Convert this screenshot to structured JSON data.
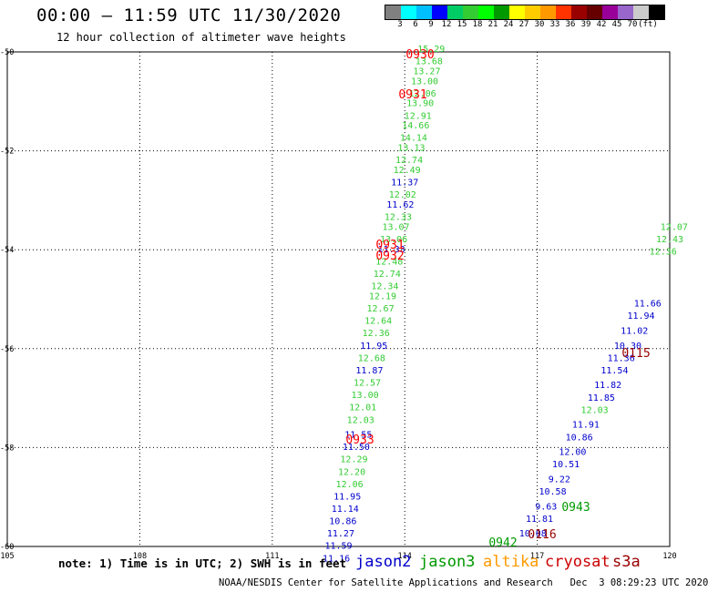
{
  "title": "00:00 – 11:59 UTC 11/30/2020",
  "subtitle": "12 hour collection of altimeter wave heights",
  "colorbar": {
    "colors": [
      "#808080",
      "#00ffff",
      "#00bfff",
      "#0000ff",
      "#00cc66",
      "#33cc33",
      "#00ff00",
      "#009900",
      "#ffff00",
      "#ffcc00",
      "#ff9900",
      "#ff3300",
      "#990000",
      "#660000",
      "#990099",
      "#9966cc",
      "#cccccc",
      "#000000"
    ],
    "labels": [
      "3",
      "6",
      "9",
      "12",
      "15",
      "18",
      "21",
      "24",
      "27",
      "30",
      "33",
      "36",
      "39",
      "42",
      "45",
      "70",
      "(ft)"
    ]
  },
  "axes": {
    "lat_labels": [
      "-50",
      "-52",
      "-54",
      "-56",
      "-58",
      "-60"
    ],
    "lon_labels": [
      "105",
      "108",
      "111",
      "114",
      "117",
      "120"
    ]
  },
  "map_data": {
    "units": "ft",
    "tracks": [
      {
        "satellite": "mixed",
        "points": [
          {
            "lon": 114.6,
            "lat": -50.0,
            "swh": "15.29",
            "color": "#33cc33"
          },
          {
            "lon": 114.55,
            "lat": -50.25,
            "swh": "13.68",
            "color": "#33cc33"
          },
          {
            "lon": 114.5,
            "lat": -50.45,
            "swh": "13.27",
            "color": "#33cc33"
          },
          {
            "lon": 114.45,
            "lat": -50.65,
            "swh": "13.00",
            "color": "#33cc33"
          },
          {
            "lon": 114.4,
            "lat": -50.9,
            "swh": "12.06",
            "color": "#33cc33"
          },
          {
            "lon": 114.35,
            "lat": -51.1,
            "swh": "13.90",
            "color": "#33cc33"
          },
          {
            "lon": 114.3,
            "lat": -51.35,
            "swh": "12.91",
            "color": "#33cc33"
          },
          {
            "lon": 114.25,
            "lat": -51.55,
            "swh": "14.66",
            "color": "#33cc33"
          },
          {
            "lon": 114.2,
            "lat": -51.8,
            "swh": "14.14",
            "color": "#33cc33"
          },
          {
            "lon": 114.15,
            "lat": -52.0,
            "swh": "13.13",
            "color": "#33cc33"
          },
          {
            "lon": 114.1,
            "lat": -52.25,
            "swh": "12.74",
            "color": "#33cc33"
          },
          {
            "lon": 114.05,
            "lat": -52.45,
            "swh": "12.49",
            "color": "#33cc33"
          },
          {
            "lon": 114.0,
            "lat": -52.7,
            "swh": "11.37",
            "color": "#0000cc"
          },
          {
            "lon": 113.95,
            "lat": -52.95,
            "swh": "12.02",
            "color": "#33cc33"
          },
          {
            "lon": 113.9,
            "lat": -53.15,
            "swh": "11.62",
            "color": "#0000cc"
          },
          {
            "lon": 113.85,
            "lat": -53.4,
            "swh": "12.33",
            "color": "#33cc33"
          },
          {
            "lon": 113.8,
            "lat": -53.6,
            "swh": "13.07",
            "color": "#33cc33"
          },
          {
            "lon": 113.75,
            "lat": -53.85,
            "swh": "13.06",
            "color": "#33cc33"
          },
          {
            "lon": 113.7,
            "lat": -54.05,
            "swh": "11.33",
            "color": "#0000cc"
          },
          {
            "lon": 113.65,
            "lat": -54.3,
            "swh": "12.48",
            "color": "#33cc33"
          },
          {
            "lon": 113.6,
            "lat": -54.55,
            "swh": "12.74",
            "color": "#33cc33"
          },
          {
            "lon": 113.55,
            "lat": -54.8,
            "swh": "12.34",
            "color": "#33cc33"
          },
          {
            "lon": 113.5,
            "lat": -55.0,
            "swh": "12.19",
            "color": "#33cc33"
          },
          {
            "lon": 113.45,
            "lat": -55.25,
            "swh": "12.67",
            "color": "#33cc33"
          },
          {
            "lon": 113.4,
            "lat": -55.5,
            "swh": "12.64",
            "color": "#33cc33"
          },
          {
            "lon": 113.35,
            "lat": -55.75,
            "swh": "12.36",
            "color": "#33cc33"
          },
          {
            "lon": 113.3,
            "lat": -56.0,
            "swh": "11.95",
            "color": "#0000cc"
          },
          {
            "lon": 113.25,
            "lat": -56.25,
            "swh": "12.68",
            "color": "#33cc33"
          },
          {
            "lon": 113.2,
            "lat": -56.5,
            "swh": "11.87",
            "color": "#0000cc"
          },
          {
            "lon": 113.15,
            "lat": -56.75,
            "swh": "12.57",
            "color": "#33cc33"
          },
          {
            "lon": 113.1,
            "lat": -57.0,
            "swh": "13.00",
            "color": "#33cc33"
          },
          {
            "lon": 113.05,
            "lat": -57.25,
            "swh": "12.01",
            "color": "#33cc33"
          },
          {
            "lon": 113.0,
            "lat": -57.5,
            "swh": "12.03",
            "color": "#33cc33"
          },
          {
            "lon": 112.95,
            "lat": -57.8,
            "swh": "11.55",
            "color": "#0000cc"
          },
          {
            "lon": 112.9,
            "lat": -58.05,
            "swh": "11.50",
            "color": "#0000cc"
          },
          {
            "lon": 112.85,
            "lat": -58.3,
            "swh": "12.29",
            "color": "#33cc33"
          },
          {
            "lon": 112.8,
            "lat": -58.55,
            "swh": "12.20",
            "color": "#33cc33"
          },
          {
            "lon": 112.75,
            "lat": -58.8,
            "swh": "12.06",
            "color": "#33cc33"
          },
          {
            "lon": 112.7,
            "lat": -59.05,
            "swh": "11.95",
            "color": "#0000cc"
          },
          {
            "lon": 112.65,
            "lat": -59.3,
            "swh": "11.14",
            "color": "#0000cc"
          },
          {
            "lon": 112.6,
            "lat": -59.55,
            "swh": "10.86",
            "color": "#0000cc"
          },
          {
            "lon": 112.55,
            "lat": -59.8,
            "swh": "11.27",
            "color": "#0000cc"
          },
          {
            "lon": 112.5,
            "lat": -60.05,
            "swh": "11.59",
            "color": "#0000cc"
          },
          {
            "lon": 112.45,
            "lat": -60.3,
            "swh": "11.16",
            "color": "#0000cc"
          }
        ]
      },
      {
        "satellite": "jason2",
        "points": [
          {
            "lon": 119.5,
            "lat": -55.15,
            "swh": "11.66",
            "color": "#0000cc"
          },
          {
            "lon": 119.35,
            "lat": -55.4,
            "swh": "11.94",
            "color": "#0000cc"
          },
          {
            "lon": 119.2,
            "lat": -55.7,
            "swh": "11.02",
            "color": "#0000cc"
          },
          {
            "lon": 119.05,
            "lat": -56.0,
            "swh": "10.30",
            "color": "#0000cc"
          },
          {
            "lon": 118.9,
            "lat": -56.25,
            "swh": "11.36",
            "color": "#0000cc"
          },
          {
            "lon": 118.75,
            "lat": -56.5,
            "swh": "11.54",
            "color": "#0000cc"
          },
          {
            "lon": 118.6,
            "lat": -56.8,
            "swh": "11.82",
            "color": "#0000cc"
          },
          {
            "lon": 118.45,
            "lat": -57.05,
            "swh": "11.85",
            "color": "#0000cc"
          },
          {
            "lon": 118.3,
            "lat": -57.3,
            "swh": "12.03",
            "color": "#33cc33"
          },
          {
            "lon": 118.1,
            "lat": -57.6,
            "swh": "11.91",
            "color": "#0000cc"
          },
          {
            "lon": 117.95,
            "lat": -57.85,
            "swh": "10.86",
            "color": "#0000cc"
          },
          {
            "lon": 117.8,
            "lat": -58.15,
            "swh": "12.00",
            "color": "#0000cc"
          },
          {
            "lon": 117.65,
            "lat": -58.4,
            "swh": "10.51",
            "color": "#0000cc"
          },
          {
            "lon": 117.5,
            "lat": -58.7,
            "swh": "9.22",
            "color": "#0000cc"
          },
          {
            "lon": 117.35,
            "lat": -58.95,
            "swh": "10.58",
            "color": "#0000cc"
          },
          {
            "lon": 117.2,
            "lat": -59.25,
            "swh": "9.63",
            "color": "#0000cc"
          },
          {
            "lon": 117.05,
            "lat": -59.5,
            "swh": "11.81",
            "color": "#0000cc"
          },
          {
            "lon": 116.9,
            "lat": -59.8,
            "swh": "10.08",
            "color": "#0000cc"
          }
        ]
      },
      {
        "satellite": "cryosat",
        "points": [
          {
            "lon": 119.85,
            "lat": -54.1,
            "swh": "12.36",
            "color": "#33cc33"
          },
          {
            "lon": 120.0,
            "lat": -53.85,
            "swh": "12.43",
            "color": "#33cc33"
          },
          {
            "lon": 120.1,
            "lat": -53.6,
            "swh": "12.07",
            "color": "#33cc33"
          }
        ]
      }
    ],
    "time_tags": [
      {
        "text": "0930",
        "color": "#ff0000"
      },
      {
        "text": "0931",
        "color": "#ff0000"
      },
      {
        "text": "0931",
        "color": "#ff0000"
      },
      {
        "text": "0932",
        "color": "#ff0000"
      },
      {
        "text": "0933",
        "color": "#ff0000"
      },
      {
        "text": "0115",
        "color": "#990000"
      },
      {
        "text": "0943",
        "color": "#009900"
      },
      {
        "text": "0116",
        "color": "#990000"
      },
      {
        "text": "0942",
        "color": "#009900"
      }
    ]
  },
  "footer": {
    "note": "note: 1) Time is in UTC; 2) SWH is in feet",
    "legend": [
      {
        "name": "jason2",
        "color": "#0000cc"
      },
      {
        "name": "jason3",
        "color": "#009900"
      },
      {
        "name": "altika",
        "color": "#ff9900"
      },
      {
        "name": "cryosat",
        "color": "#cc0000"
      },
      {
        "name": "s3a",
        "color": "#990000"
      }
    ],
    "credit": "NOAA/NESDIS Center for Satellite Applications and Research   Dec  3 08:29:23 UTC 2020"
  }
}
